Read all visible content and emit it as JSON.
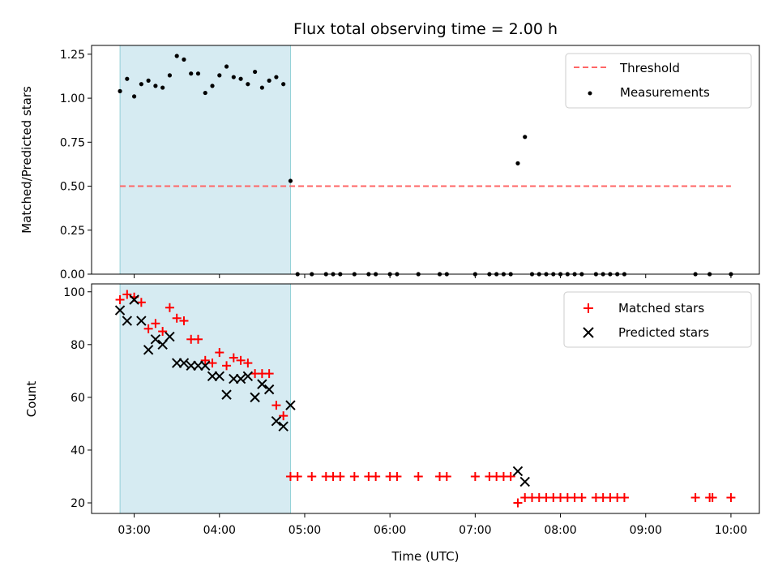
{
  "chart_data": [
    {
      "type": "scatter",
      "title": "Flux total observing time = 2.00 h",
      "xlabel": "",
      "ylabel": "Matched/Predicted stars",
      "x_unit": "time (UTC)",
      "xlim": [
        "02:30",
        "10:20"
      ],
      "ylim": [
        0,
        1.3
      ],
      "yticks": [
        "0.00",
        "0.25",
        "0.50",
        "0.75",
        "1.00",
        "1.25"
      ],
      "xticks": [
        "03:00",
        "04:00",
        "05:00",
        "06:00",
        "07:00",
        "08:00",
        "09:00",
        "10:00"
      ],
      "highlight_span": [
        "02:50",
        "04:50"
      ],
      "highlight_color": "#add8e6",
      "legend": {
        "placement": "upper right",
        "entries": [
          "Threshold",
          "Measurements"
        ]
      },
      "series": [
        {
          "name": "Threshold",
          "style": "dashed-line",
          "color": "#ff6666",
          "points": [
            {
              "x": "02:50",
              "y": 0.5
            },
            {
              "x": "10:00",
              "y": 0.5
            }
          ]
        },
        {
          "name": "Measurements",
          "style": "dot",
          "color": "#000000",
          "points": [
            {
              "x": "02:50",
              "y": 1.04
            },
            {
              "x": "02:55",
              "y": 1.11
            },
            {
              "x": "03:00",
              "y": 1.01
            },
            {
              "x": "03:05",
              "y": 1.08
            },
            {
              "x": "03:10",
              "y": 1.1
            },
            {
              "x": "03:15",
              "y": 1.07
            },
            {
              "x": "03:20",
              "y": 1.06
            },
            {
              "x": "03:25",
              "y": 1.13
            },
            {
              "x": "03:30",
              "y": 1.24
            },
            {
              "x": "03:35",
              "y": 1.22
            },
            {
              "x": "03:40",
              "y": 1.14
            },
            {
              "x": "03:45",
              "y": 1.14
            },
            {
              "x": "03:50",
              "y": 1.03
            },
            {
              "x": "03:55",
              "y": 1.07
            },
            {
              "x": "04:00",
              "y": 1.13
            },
            {
              "x": "04:05",
              "y": 1.18
            },
            {
              "x": "04:10",
              "y": 1.12
            },
            {
              "x": "04:15",
              "y": 1.11
            },
            {
              "x": "04:20",
              "y": 1.08
            },
            {
              "x": "04:25",
              "y": 1.15
            },
            {
              "x": "04:30",
              "y": 1.06
            },
            {
              "x": "04:35",
              "y": 1.1
            },
            {
              "x": "04:40",
              "y": 1.12
            },
            {
              "x": "04:45",
              "y": 1.08
            },
            {
              "x": "04:50",
              "y": 0.53
            },
            {
              "x": "04:55",
              "y": 0
            },
            {
              "x": "05:05",
              "y": 0
            },
            {
              "x": "05:15",
              "y": 0
            },
            {
              "x": "05:20",
              "y": 0
            },
            {
              "x": "05:25",
              "y": 0
            },
            {
              "x": "05:35",
              "y": 0
            },
            {
              "x": "05:45",
              "y": 0
            },
            {
              "x": "05:50",
              "y": 0
            },
            {
              "x": "06:00",
              "y": 0
            },
            {
              "x": "06:05",
              "y": 0
            },
            {
              "x": "06:20",
              "y": 0
            },
            {
              "x": "06:35",
              "y": 0
            },
            {
              "x": "06:40",
              "y": 0
            },
            {
              "x": "07:00",
              "y": 0
            },
            {
              "x": "07:10",
              "y": 0
            },
            {
              "x": "07:15",
              "y": 0
            },
            {
              "x": "07:20",
              "y": 0
            },
            {
              "x": "07:25",
              "y": 0
            },
            {
              "x": "07:30",
              "y": 0.63
            },
            {
              "x": "07:35",
              "y": 0.78
            },
            {
              "x": "07:40",
              "y": 0
            },
            {
              "x": "07:45",
              "y": 0
            },
            {
              "x": "07:50",
              "y": 0
            },
            {
              "x": "07:55",
              "y": 0
            },
            {
              "x": "08:00",
              "y": 0
            },
            {
              "x": "08:05",
              "y": 0
            },
            {
              "x": "08:10",
              "y": 0
            },
            {
              "x": "08:15",
              "y": 0
            },
            {
              "x": "08:25",
              "y": 0
            },
            {
              "x": "08:30",
              "y": 0
            },
            {
              "x": "08:35",
              "y": 0
            },
            {
              "x": "08:40",
              "y": 0
            },
            {
              "x": "08:45",
              "y": 0
            },
            {
              "x": "09:35",
              "y": 0
            },
            {
              "x": "09:45",
              "y": 0
            },
            {
              "x": "10:00",
              "y": 0
            }
          ]
        }
      ]
    },
    {
      "type": "scatter",
      "title": "",
      "xlabel": "Time (UTC)",
      "ylabel": "Count",
      "xlim": [
        "02:30",
        "10:20"
      ],
      "ylim": [
        16,
        103
      ],
      "yticks": [
        "20",
        "40",
        "60",
        "80",
        "100"
      ],
      "xticks": [
        "03:00",
        "04:00",
        "05:00",
        "06:00",
        "07:00",
        "08:00",
        "09:00",
        "10:00"
      ],
      "highlight_span": [
        "02:50",
        "04:50"
      ],
      "highlight_color": "#add8e6",
      "legend": {
        "placement": "upper right",
        "entries": [
          "Matched stars",
          "Predicted stars"
        ]
      },
      "series": [
        {
          "name": "Matched stars",
          "marker": "plus",
          "color": "#ff0000",
          "points": [
            {
              "x": "02:50",
              "y": 97
            },
            {
              "x": "02:55",
              "y": 99
            },
            {
              "x": "03:00",
              "y": 98
            },
            {
              "x": "03:05",
              "y": 96
            },
            {
              "x": "03:10",
              "y": 86
            },
            {
              "x": "03:15",
              "y": 88
            },
            {
              "x": "03:20",
              "y": 85
            },
            {
              "x": "03:25",
              "y": 94
            },
            {
              "x": "03:30",
              "y": 90
            },
            {
              "x": "03:35",
              "y": 89
            },
            {
              "x": "03:40",
              "y": 82
            },
            {
              "x": "03:45",
              "y": 82
            },
            {
              "x": "03:50",
              "y": 74
            },
            {
              "x": "03:55",
              "y": 73
            },
            {
              "x": "04:00",
              "y": 77
            },
            {
              "x": "04:05",
              "y": 72
            },
            {
              "x": "04:10",
              "y": 75
            },
            {
              "x": "04:15",
              "y": 74
            },
            {
              "x": "04:20",
              "y": 73
            },
            {
              "x": "04:25",
              "y": 69
            },
            {
              "x": "04:30",
              "y": 69
            },
            {
              "x": "04:35",
              "y": 69
            },
            {
              "x": "04:40",
              "y": 57
            },
            {
              "x": "04:45",
              "y": 53
            },
            {
              "x": "04:50",
              "y": 30
            },
            {
              "x": "04:55",
              "y": 30
            },
            {
              "x": "05:05",
              "y": 30
            },
            {
              "x": "05:15",
              "y": 30
            },
            {
              "x": "05:20",
              "y": 30
            },
            {
              "x": "05:25",
              "y": 30
            },
            {
              "x": "05:35",
              "y": 30
            },
            {
              "x": "05:45",
              "y": 30
            },
            {
              "x": "05:50",
              "y": 30
            },
            {
              "x": "06:00",
              "y": 30
            },
            {
              "x": "06:05",
              "y": 30
            },
            {
              "x": "06:20",
              "y": 30
            },
            {
              "x": "06:35",
              "y": 30
            },
            {
              "x": "06:40",
              "y": 30
            },
            {
              "x": "07:00",
              "y": 30
            },
            {
              "x": "07:10",
              "y": 30
            },
            {
              "x": "07:15",
              "y": 30
            },
            {
              "x": "07:20",
              "y": 30
            },
            {
              "x": "07:25",
              "y": 30
            },
            {
              "x": "07:30",
              "y": 20
            },
            {
              "x": "07:35",
              "y": 22
            },
            {
              "x": "07:40",
              "y": 22
            },
            {
              "x": "07:45",
              "y": 22
            },
            {
              "x": "07:50",
              "y": 22
            },
            {
              "x": "07:55",
              "y": 22
            },
            {
              "x": "08:00",
              "y": 22
            },
            {
              "x": "08:05",
              "y": 22
            },
            {
              "x": "08:10",
              "y": 22
            },
            {
              "x": "08:15",
              "y": 22
            },
            {
              "x": "08:25",
              "y": 22
            },
            {
              "x": "08:30",
              "y": 22
            },
            {
              "x": "08:35",
              "y": 22
            },
            {
              "x": "08:40",
              "y": 22
            },
            {
              "x": "08:45",
              "y": 22
            },
            {
              "x": "09:35",
              "y": 22
            },
            {
              "x": "09:45",
              "y": 22
            },
            {
              "x": "09:47",
              "y": 22
            },
            {
              "x": "10:00",
              "y": 22
            }
          ]
        },
        {
          "name": "Predicted stars",
          "marker": "x",
          "color": "#000000",
          "points": [
            {
              "x": "02:50",
              "y": 93
            },
            {
              "x": "02:55",
              "y": 89
            },
            {
              "x": "03:00",
              "y": 97
            },
            {
              "x": "03:05",
              "y": 89
            },
            {
              "x": "03:10",
              "y": 78
            },
            {
              "x": "03:15",
              "y": 82
            },
            {
              "x": "03:20",
              "y": 80
            },
            {
              "x": "03:25",
              "y": 83
            },
            {
              "x": "03:30",
              "y": 73
            },
            {
              "x": "03:35",
              "y": 73
            },
            {
              "x": "03:40",
              "y": 72
            },
            {
              "x": "03:45",
              "y": 72
            },
            {
              "x": "03:50",
              "y": 72
            },
            {
              "x": "03:55",
              "y": 68
            },
            {
              "x": "04:00",
              "y": 68
            },
            {
              "x": "04:05",
              "y": 61
            },
            {
              "x": "04:10",
              "y": 67
            },
            {
              "x": "04:15",
              "y": 67
            },
            {
              "x": "04:20",
              "y": 68
            },
            {
              "x": "04:25",
              "y": 60
            },
            {
              "x": "04:30",
              "y": 65
            },
            {
              "x": "04:35",
              "y": 63
            },
            {
              "x": "04:40",
              "y": 51
            },
            {
              "x": "04:45",
              "y": 49
            },
            {
              "x": "04:50",
              "y": 57
            },
            {
              "x": "07:30",
              "y": 32
            },
            {
              "x": "07:35",
              "y": 28
            }
          ]
        }
      ]
    }
  ]
}
